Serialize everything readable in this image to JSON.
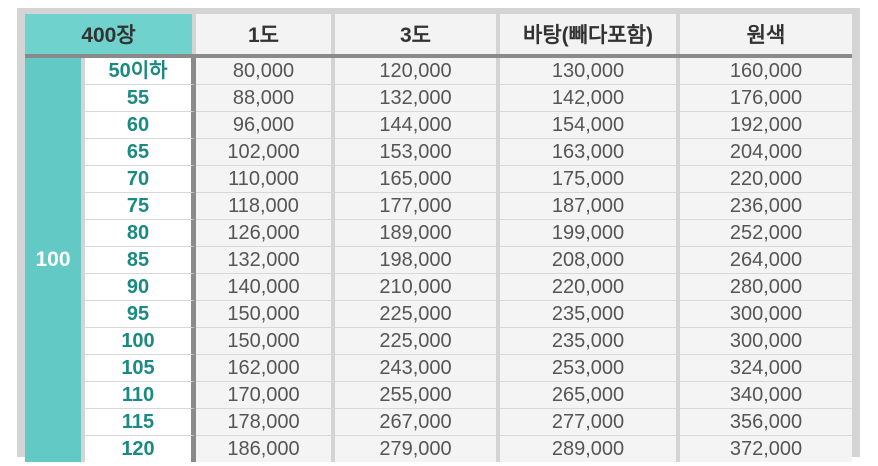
{
  "header": {
    "corner": "400장",
    "columns": [
      "1도",
      "3도",
      "바탕(빼다포함)",
      "원색"
    ]
  },
  "group_label": "100",
  "rows": [
    {
      "qty": "50이하",
      "values": [
        "80,000",
        "120,000",
        "130,000",
        "160,000"
      ]
    },
    {
      "qty": "55",
      "values": [
        "88,000",
        "132,000",
        "142,000",
        "176,000"
      ]
    },
    {
      "qty": "60",
      "values": [
        "96,000",
        "144,000",
        "154,000",
        "192,000"
      ]
    },
    {
      "qty": "65",
      "values": [
        "102,000",
        "153,000",
        "163,000",
        "204,000"
      ]
    },
    {
      "qty": "70",
      "values": [
        "110,000",
        "165,000",
        "175,000",
        "220,000"
      ]
    },
    {
      "qty": "75",
      "values": [
        "118,000",
        "177,000",
        "187,000",
        "236,000"
      ]
    },
    {
      "qty": "80",
      "values": [
        "126,000",
        "189,000",
        "199,000",
        "252,000"
      ]
    },
    {
      "qty": "85",
      "values": [
        "132,000",
        "198,000",
        "208,000",
        "264,000"
      ]
    },
    {
      "qty": "90",
      "values": [
        "140,000",
        "210,000",
        "220,000",
        "280,000"
      ]
    },
    {
      "qty": "95",
      "values": [
        "150,000",
        "225,000",
        "235,000",
        "300,000"
      ]
    },
    {
      "qty": "100",
      "values": [
        "150,000",
        "225,000",
        "235,000",
        "300,000"
      ]
    },
    {
      "qty": "105",
      "values": [
        "162,000",
        "243,000",
        "253,000",
        "324,000"
      ]
    },
    {
      "qty": "110",
      "values": [
        "170,000",
        "255,000",
        "265,000",
        "340,000"
      ]
    },
    {
      "qty": "115",
      "values": [
        "178,000",
        "267,000",
        "277,000",
        "356,000"
      ]
    },
    {
      "qty": "120",
      "values": [
        "186,000",
        "279,000",
        "289,000",
        "372,000"
      ]
    }
  ],
  "colors": {
    "accent_teal": "#62c9c5",
    "header_teal": "#6fd2cd",
    "qty_text": "#1a8a82",
    "frame_gray": "#d4d4d4"
  }
}
